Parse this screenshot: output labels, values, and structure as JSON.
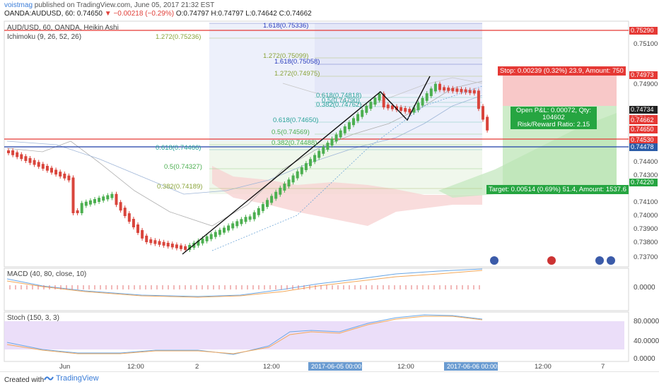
{
  "header": {
    "author": "voistmag",
    "published": "published on TradingView.com, June 05, 2017 21:32 EST",
    "symbol_line": "OANDA:AUDUSD, 60",
    "ohlc_o": "O:0.74797",
    "ohlc_h": "H:0.74797",
    "ohlc_l": "L:0.74642",
    "ohlc_c": "C:0.74662",
    "last": "0.74650",
    "change": "−0.00218 (−0.29%)"
  },
  "main": {
    "title": "AUD/USD, 60, OANDA, Heikin Ashi",
    "indicator": "Ichimoku (9, 26, 52, 26)"
  },
  "price_axis": {
    "ticks": [
      "0.75200",
      "0.75100",
      "0.74900",
      "0.74700",
      "0.74600",
      "0.74400",
      "0.74300",
      "0.74100",
      "0.74000",
      "0.73900",
      "0.73800",
      "0.73700"
    ],
    "labels": [
      {
        "text": "0.75290",
        "color": "#e53935"
      },
      {
        "text": "0.74973",
        "color": "#e53935"
      },
      {
        "text": "0.74734",
        "color": "#222222"
      },
      {
        "text": "27:50",
        "color": "#e53935"
      },
      {
        "text": "0.74662",
        "color": "#e53935"
      },
      {
        "text": "0.74650",
        "color": "#e53935"
      },
      {
        "text": "0.74530",
        "color": "#e53935"
      },
      {
        "text": "0.74478",
        "color": "#2b5ca8"
      },
      {
        "text": "0.74220",
        "color": "#26a541"
      }
    ]
  },
  "fib_labels": [
    {
      "text": "1.618(0.75336)",
      "color": "#2a3dbd"
    },
    {
      "text": "1.272(0.75236)",
      "color": "#8aa43a"
    },
    {
      "text": "1.272(0.75099)",
      "color": "#8aa43a"
    },
    {
      "text": "1.618(0.75058)",
      "color": "#2a3dbd"
    },
    {
      "text": "1.272(0.74975)",
      "color": "#8aa43a"
    },
    {
      "text": "0.618(0.74818)",
      "color": "#2aa39a"
    },
    {
      "text": "0.5(0.74790)",
      "color": "#2aa39a"
    },
    {
      "text": "0.382(0.74762)",
      "color": "#2aa39a"
    },
    {
      "text": "0.618(0.74650)",
      "color": "#2aa39a"
    },
    {
      "text": "0.5(0.74569)",
      "color": "#4caf50"
    },
    {
      "text": "0.382(0.74488)",
      "color": "#4caf50"
    },
    {
      "text": "0.618(0.74466)",
      "color": "#2aa39a"
    },
    {
      "text": "0.5(0.74327)",
      "color": "#4caf50"
    },
    {
      "text": "0.382(0.74189)",
      "color": "#8aa43a"
    }
  ],
  "position": {
    "stop": "Stop: 0.00239 (0.32%) 23.9, Amount: 750",
    "pnl": "Open P&L: 0.00072, Qty: 104602",
    "rr": "Risk/Reward Ratio: 2.15",
    "target": "Target: 0.00514 (0.69%) 51.4, Amount: 1537.6"
  },
  "macd": {
    "label": "MACD (40, 80, close, 10)",
    "axis": "0.0000"
  },
  "stoch": {
    "label": "Stoch (150, 3, 3)",
    "axis": [
      "80.0000",
      "40.0000",
      "0.0000"
    ]
  },
  "time_axis": {
    "ticks": [
      "Jun",
      "12:00",
      "2",
      "12:00",
      "12:00",
      "12:00",
      "7"
    ],
    "highlights": [
      "2017-06-05 00:00:00",
      "2017-06-06 00:00:00"
    ]
  },
  "footer": {
    "created": "Created with",
    "brand": "TradingView"
  },
  "colors": {
    "up": "#4caf50",
    "down": "#d9453c",
    "resistance": "#e53935",
    "support": "#1e3fa8"
  }
}
